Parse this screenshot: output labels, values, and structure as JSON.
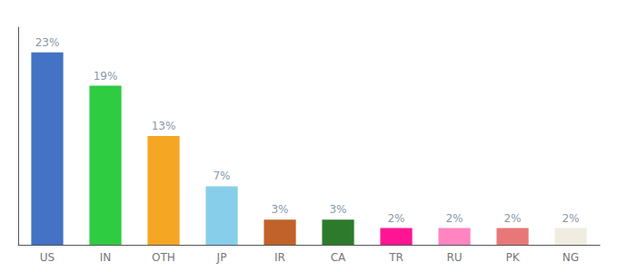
{
  "chart_data": {
    "type": "bar",
    "categories": [
      "US",
      "IN",
      "OTH",
      "JP",
      "IR",
      "CA",
      "TR",
      "RU",
      "PK",
      "NG"
    ],
    "values": [
      23,
      19,
      13,
      7,
      3,
      3,
      2,
      2,
      2,
      2
    ],
    "value_labels": [
      "23%",
      "19%",
      "13%",
      "7%",
      "3%",
      "3%",
      "2%",
      "2%",
      "2%",
      "2%"
    ],
    "colors": [
      "#4472c4",
      "#2ecc40",
      "#f5a623",
      "#87ceeb",
      "#c0622a",
      "#2d7a2d",
      "#ff1493",
      "#ff85c0",
      "#e87878",
      "#f0ede0"
    ],
    "ylim": [
      0,
      26
    ],
    "data_labels": true,
    "tick_labels": "x",
    "grid": false
  }
}
